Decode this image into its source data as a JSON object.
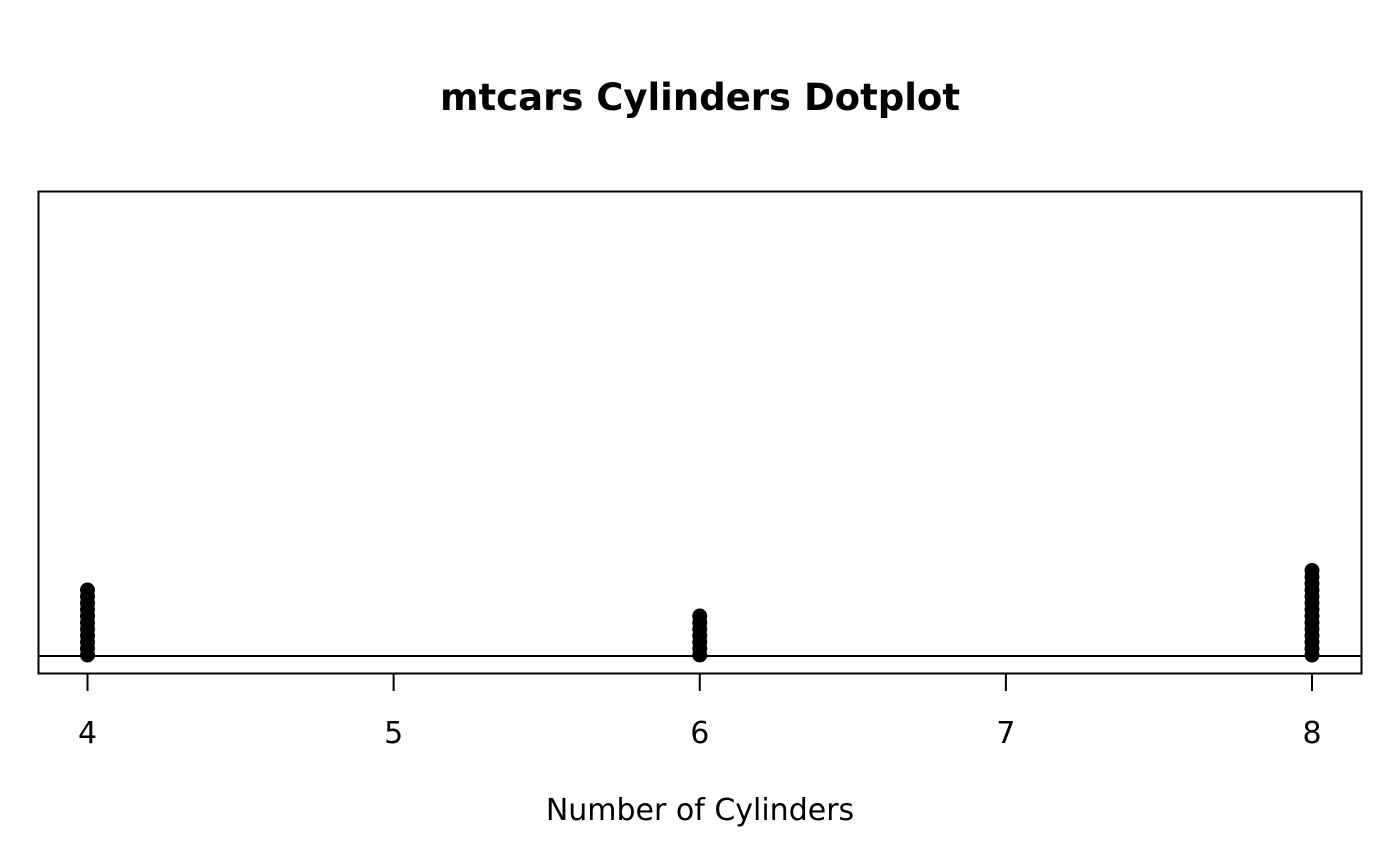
{
  "chart_data": {
    "type": "scatter",
    "title": "mtcars Cylinders Dotplot",
    "xlabel": "Number of Cylinders",
    "ylabel": "",
    "xlim": [
      3.84,
      8.16
    ],
    "x_ticks": [
      "4",
      "5",
      "6",
      "7",
      "8"
    ],
    "grid": false,
    "legend": "none",
    "categories": [
      4,
      6,
      8
    ],
    "values": [
      11,
      7,
      14
    ],
    "point_color": "#000000",
    "frame_color": "#000000"
  }
}
